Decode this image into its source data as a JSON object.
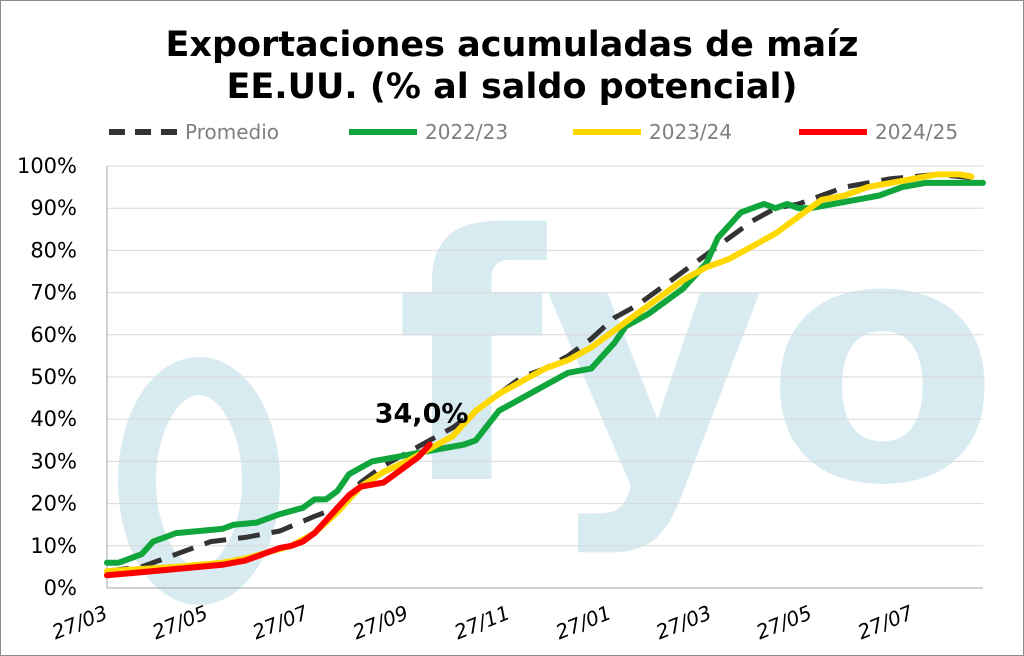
{
  "chart_data": {
    "type": "line",
    "title": "Exportaciones acumuladas de maíz",
    "subtitle": "EE.UU. (% al saldo potencial)",
    "watermark": "fyo",
    "ylim": [
      0,
      100
    ],
    "y_ticks": [
      "0%",
      "10%",
      "20%",
      "30%",
      "40%",
      "50%",
      "60%",
      "70%",
      "80%",
      "90%",
      "100%"
    ],
    "x_tick_labels": [
      "27/03",
      "27/05",
      "27/07",
      "27/09",
      "27/11",
      "27/01",
      "27/03",
      "27/05",
      "27/07"
    ],
    "x_tick_weeks": [
      0,
      8.7,
      17.4,
      26.1,
      34.9,
      43.7,
      52.4,
      61.1,
      69.9
    ],
    "x_max_week": 76,
    "grid": "horizontal",
    "legend_position": "top",
    "annotation": {
      "text": "34,0%",
      "series": "2024/25",
      "week": 28,
      "value": 34
    },
    "series": [
      {
        "name": "Promedio",
        "color": "#333333",
        "dashed": true,
        "points": [
          [
            0,
            4
          ],
          [
            3,
            5
          ],
          [
            6,
            8
          ],
          [
            9,
            11
          ],
          [
            12,
            12
          ],
          [
            15,
            13.5
          ],
          [
            18,
            17
          ],
          [
            20,
            19
          ],
          [
            22,
            25
          ],
          [
            24,
            29
          ],
          [
            26,
            32
          ],
          [
            28,
            35
          ],
          [
            30,
            38
          ],
          [
            32,
            42
          ],
          [
            34,
            46
          ],
          [
            36,
            50
          ],
          [
            38,
            52
          ],
          [
            40,
            55
          ],
          [
            42,
            59
          ],
          [
            44,
            64
          ],
          [
            46,
            67
          ],
          [
            48,
            71
          ],
          [
            50,
            75
          ],
          [
            52,
            79
          ],
          [
            54,
            83
          ],
          [
            56,
            87
          ],
          [
            58,
            90
          ],
          [
            60,
            91
          ],
          [
            62,
            93
          ],
          [
            64,
            95
          ],
          [
            66,
            96
          ],
          [
            68,
            97
          ],
          [
            70,
            97.5
          ],
          [
            72,
            98
          ],
          [
            74,
            97.5
          ],
          [
            76,
            97
          ]
        ]
      },
      {
        "name": "2022/23",
        "color": "#10a63c",
        "dashed": false,
        "points": [
          [
            0,
            6
          ],
          [
            1,
            6
          ],
          [
            2,
            7
          ],
          [
            3,
            8
          ],
          [
            4,
            11
          ],
          [
            5,
            12
          ],
          [
            6,
            13
          ],
          [
            8,
            13.5
          ],
          [
            10,
            14
          ],
          [
            11,
            15
          ],
          [
            13,
            15.5
          ],
          [
            15,
            17.5
          ],
          [
            17,
            19
          ],
          [
            18,
            21
          ],
          [
            19,
            21
          ],
          [
            20,
            23
          ],
          [
            21,
            27
          ],
          [
            22,
            28.5
          ],
          [
            23,
            30
          ],
          [
            25,
            31
          ],
          [
            27,
            32
          ],
          [
            29,
            33
          ],
          [
            31,
            34
          ],
          [
            32,
            35
          ],
          [
            34,
            42
          ],
          [
            36,
            45
          ],
          [
            38,
            48
          ],
          [
            40,
            51
          ],
          [
            42,
            52
          ],
          [
            43,
            55
          ],
          [
            44,
            58
          ],
          [
            45,
            62
          ],
          [
            47,
            65
          ],
          [
            49,
            69
          ],
          [
            50,
            71
          ],
          [
            51,
            74
          ],
          [
            52,
            77
          ],
          [
            53,
            83
          ],
          [
            54,
            86
          ],
          [
            55,
            89
          ],
          [
            57,
            91
          ],
          [
            58,
            90
          ],
          [
            59,
            91
          ],
          [
            60,
            90
          ],
          [
            61,
            90
          ],
          [
            63,
            91
          ],
          [
            65,
            92
          ],
          [
            67,
            93
          ],
          [
            69,
            95
          ],
          [
            71,
            96
          ],
          [
            72,
            96
          ],
          [
            74,
            96
          ],
          [
            76,
            96
          ]
        ]
      },
      {
        "name": "2023/24",
        "color": "#ffd800",
        "dashed": false,
        "points": [
          [
            0,
            4
          ],
          [
            3,
            4.5
          ],
          [
            6,
            5
          ],
          [
            8,
            5.5
          ],
          [
            10,
            6
          ],
          [
            12,
            7
          ],
          [
            14,
            8.5
          ],
          [
            16,
            10
          ],
          [
            18,
            13
          ],
          [
            20,
            18
          ],
          [
            22,
            24
          ],
          [
            24,
            27.5
          ],
          [
            26,
            30
          ],
          [
            28,
            33
          ],
          [
            30,
            36
          ],
          [
            32,
            42
          ],
          [
            34,
            46
          ],
          [
            36,
            49
          ],
          [
            38,
            52
          ],
          [
            40,
            54
          ],
          [
            42,
            57
          ],
          [
            44,
            61
          ],
          [
            46,
            65
          ],
          [
            48,
            69
          ],
          [
            50,
            73
          ],
          [
            52,
            76
          ],
          [
            54,
            78
          ],
          [
            56,
            81
          ],
          [
            58,
            84
          ],
          [
            60,
            88
          ],
          [
            61,
            90
          ],
          [
            62,
            92
          ],
          [
            64,
            93
          ],
          [
            66,
            95
          ],
          [
            68,
            96
          ],
          [
            70,
            97
          ],
          [
            72,
            98
          ],
          [
            74,
            98
          ],
          [
            75,
            97.5
          ]
        ]
      },
      {
        "name": "2024/25",
        "color": "#ff0000",
        "dashed": false,
        "points": [
          [
            0,
            3
          ],
          [
            2,
            3.5
          ],
          [
            4,
            4
          ],
          [
            6,
            4.5
          ],
          [
            8,
            5
          ],
          [
            10,
            5.5
          ],
          [
            12,
            6.5
          ],
          [
            13,
            7.5
          ],
          [
            14,
            8.5
          ],
          [
            15,
            9.5
          ],
          [
            16,
            10
          ],
          [
            17,
            11
          ],
          [
            18,
            13
          ],
          [
            19,
            16
          ],
          [
            20,
            19
          ],
          [
            21,
            22
          ],
          [
            22,
            24
          ],
          [
            24,
            25
          ],
          [
            25,
            27
          ],
          [
            26,
            29
          ],
          [
            27,
            31
          ],
          [
            28,
            34
          ]
        ]
      }
    ]
  }
}
